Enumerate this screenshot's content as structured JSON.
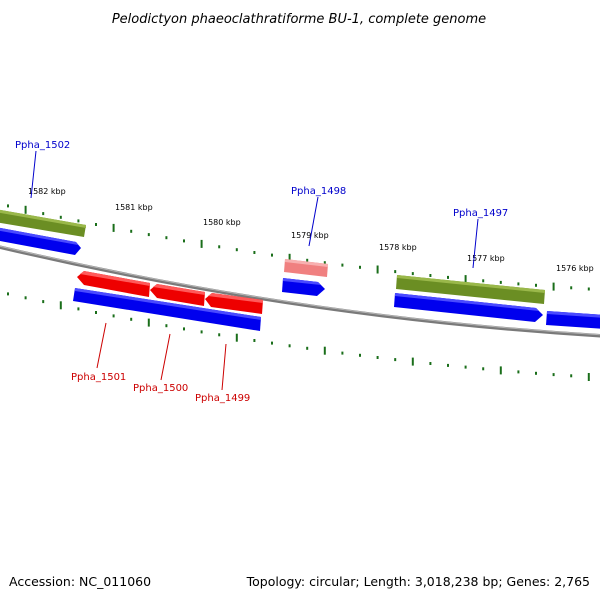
{
  "title": "Pelodictyon phaeoclathratiforme BU-1, complete genome",
  "footer": {
    "accession": "Accession: NC_011060",
    "summary": "Topology: circular; Length: 3,018,238 bp; Genes: 2,765"
  },
  "scale_labels": [
    "1582 kbp",
    "1581 kbp",
    "1580 kbp",
    "1579 kbp",
    "1578 kbp",
    "1577 kbp",
    "1576 kbp"
  ],
  "gene_labels": [
    {
      "text": "Ppha_1502",
      "strand": "forward"
    },
    {
      "text": "Ppha_1498",
      "strand": "forward"
    },
    {
      "text": "Ppha_1497",
      "strand": "forward"
    },
    {
      "text": "Ppha_1501",
      "strand": "reverse"
    },
    {
      "text": "Ppha_1500",
      "strand": "reverse"
    },
    {
      "text": "Ppha_1499",
      "strand": "reverse"
    }
  ],
  "colors": {
    "forward_label": "#0000cc",
    "reverse_label": "#cc0000",
    "tick": "#1a6e1a",
    "backbone": "#808080",
    "cds_blue": "#0000ee",
    "gene_green": "#6b8e23",
    "cds_red": "#ee0000",
    "pseudo_pink": "#f08080"
  }
}
